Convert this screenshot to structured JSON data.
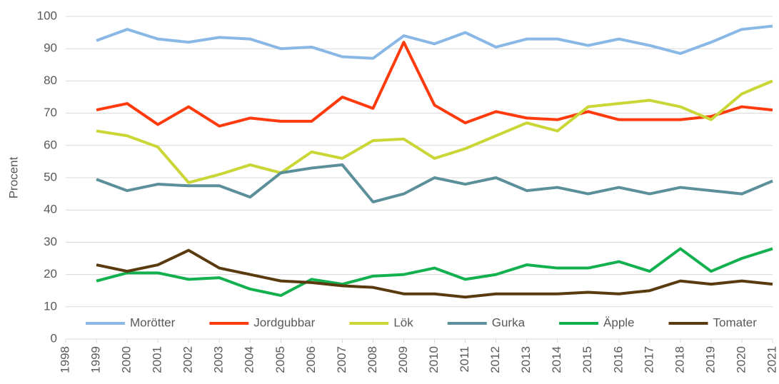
{
  "chart_data": {
    "type": "line",
    "y_label": "Procent",
    "x": [
      1999,
      2000,
      2001,
      2002,
      2003,
      2004,
      2005,
      2006,
      2007,
      2008,
      2009,
      2010,
      2011,
      2012,
      2013,
      2014,
      2015,
      2016,
      2017,
      2018,
      2019,
      2020,
      2021
    ],
    "xlim": [
      1998,
      2021
    ],
    "xticks": [
      1998,
      1999,
      2000,
      2001,
      2002,
      2003,
      2004,
      2005,
      2006,
      2007,
      2008,
      2009,
      2010,
      2011,
      2012,
      2013,
      2014,
      2015,
      2016,
      2017,
      2018,
      2019,
      2020,
      2021
    ],
    "ylim": [
      0,
      100
    ],
    "yticks": [
      0,
      10,
      20,
      30,
      40,
      50,
      60,
      70,
      80,
      90,
      100
    ],
    "grid": true,
    "legend": "bottom",
    "series": [
      {
        "name": "Morötter",
        "color": "#8ab8e6",
        "values": [
          92.5,
          96,
          93,
          92,
          93.5,
          93,
          90,
          90.5,
          87.5,
          87,
          94,
          91.5,
          95,
          90.5,
          93,
          93,
          91,
          93,
          91,
          88.5,
          92,
          96,
          97
        ]
      },
      {
        "name": "Jordgubbar",
        "color": "#ff3a0d",
        "values": [
          71,
          73,
          66.5,
          72,
          66,
          68.5,
          67.5,
          67.5,
          75,
          71.5,
          92,
          72.5,
          67,
          70.5,
          68.5,
          68,
          70.5,
          68,
          68,
          68,
          69,
          72,
          71
        ]
      },
      {
        "name": "Lök",
        "color": "#c9d636",
        "values": [
          64.5,
          63,
          59.5,
          48.5,
          51,
          54,
          51.5,
          58,
          56,
          61.5,
          62,
          56,
          59,
          63,
          67,
          64.5,
          72,
          73,
          74,
          72,
          68,
          76,
          80
        ]
      },
      {
        "name": "Gurka",
        "color": "#5b8f99",
        "values": [
          49.5,
          46,
          48,
          47.5,
          47.5,
          44,
          51.5,
          53,
          54,
          42.5,
          45,
          50,
          48,
          50,
          46,
          47,
          45,
          47,
          45,
          47,
          46,
          45,
          49
        ]
      },
      {
        "name": "Äpple",
        "color": "#12b04e",
        "values": [
          18,
          20.5,
          20.5,
          18.5,
          19,
          15.5,
          13.5,
          18.5,
          17,
          19.5,
          20,
          22,
          18.5,
          20,
          23,
          22,
          22,
          24,
          21,
          28,
          21,
          25,
          28
        ]
      },
      {
        "name": "Tomater",
        "color": "#5a3a0f",
        "values": [
          23,
          21,
          23,
          27.5,
          22,
          20,
          18,
          17.5,
          16.5,
          16,
          14,
          14,
          13,
          14,
          14,
          14,
          14.5,
          14,
          15,
          18,
          17,
          18,
          17
        ]
      }
    ]
  }
}
